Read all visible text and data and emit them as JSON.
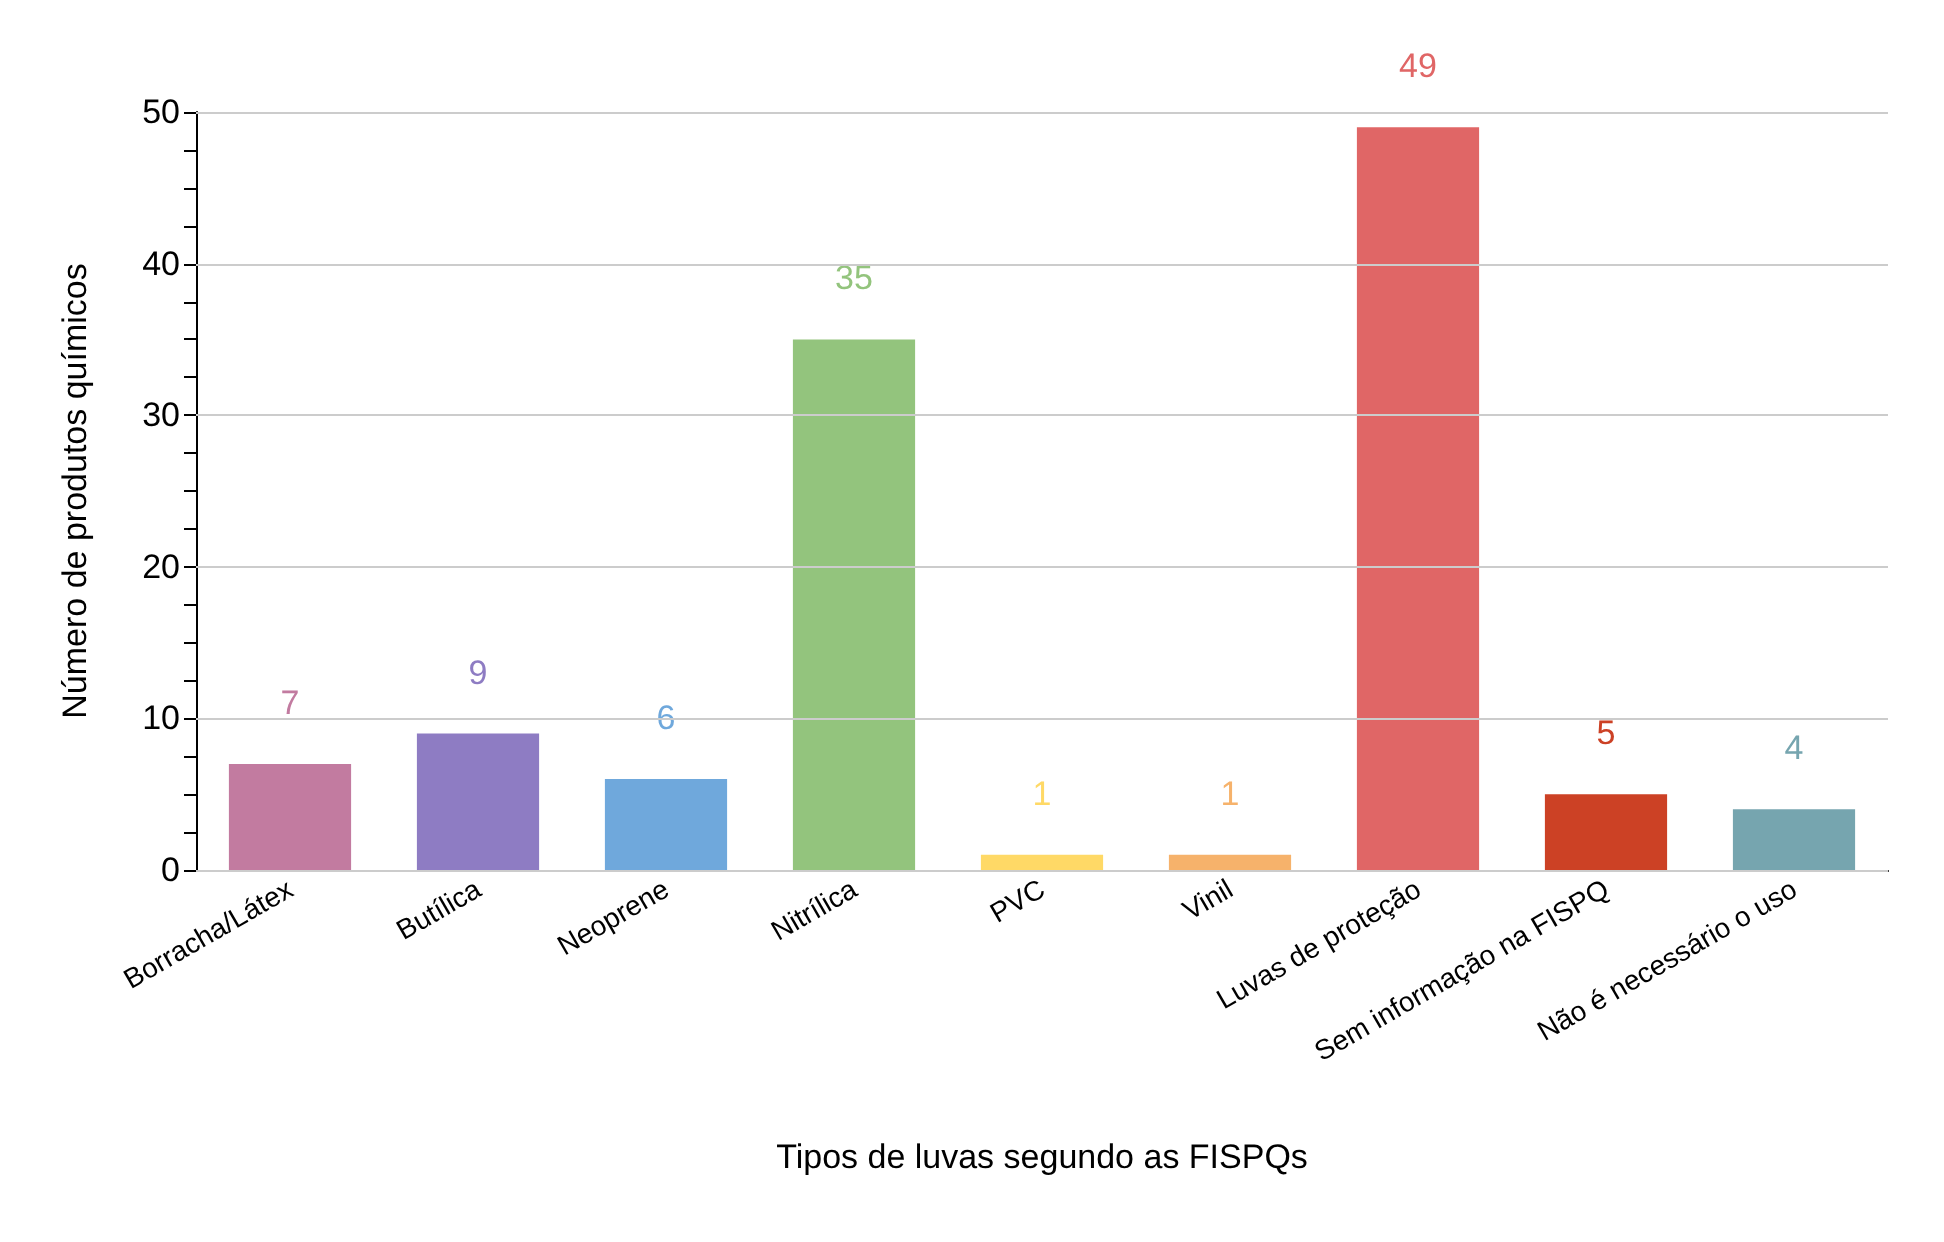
{
  "chart_data": {
    "type": "bar",
    "xlabel": "Tipos de luvas segundo as FISPQs",
    "ylabel": "Número de produtos químicos",
    "categories": [
      "Borracha/Látex",
      "Butílica",
      "Neoprene",
      "Nitrílica",
      "PVC",
      "Vinil",
      "Luvas de proteção",
      "Sem informação na FISPQ",
      "Não é necessário o uso"
    ],
    "values": [
      7,
      9,
      6,
      35,
      1,
      1,
      49,
      5,
      4
    ],
    "colors": [
      "#c27ba0",
      "#8e7cc3",
      "#6fa8dc",
      "#93c47d",
      "#ffd966",
      "#f6b26b",
      "#e06666",
      "#cc4125",
      "#76a5af"
    ],
    "ylim": [
      0,
      50
    ],
    "yticks": [
      0,
      {
        "value": 2.5,
        "label": null
      },
      {
        "value": 5,
        "label": null
      },
      {
        "value": 7.5,
        "label": null
      },
      10,
      {
        "value": 12.5,
        "label": null
      },
      {
        "value": 15,
        "label": null
      },
      {
        "value": 17.5,
        "label": null
      },
      20,
      {
        "value": 22.5,
        "label": null
      },
      {
        "value": 25,
        "label": null
      },
      {
        "value": 27.5,
        "label": null
      },
      30,
      {
        "value": 32.5,
        "label": null
      },
      {
        "value": 35,
        "label": null
      },
      {
        "value": 37.5,
        "label": null
      },
      40,
      {
        "value": 42.5,
        "label": null
      },
      {
        "value": 45,
        "label": null
      },
      {
        "value": 47.5,
        "label": null
      },
      50
    ],
    "grid": "y",
    "data_labels": true
  }
}
